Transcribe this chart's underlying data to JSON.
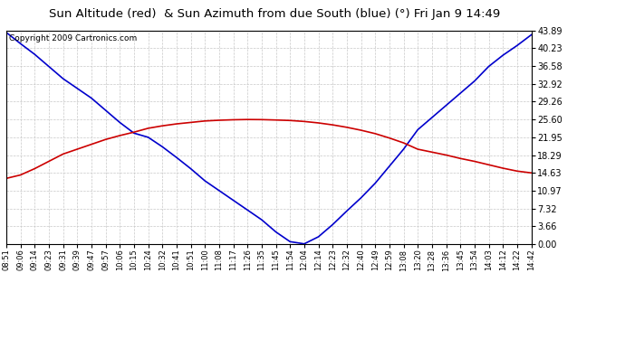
{
  "title": "Sun Altitude (red)  & Sun Azimuth from due South (blue) (°) Fri Jan 9 14:49",
  "copyright": "Copyright 2009 Cartronics.com",
  "yticks": [
    0.0,
    3.66,
    7.32,
    10.97,
    14.63,
    18.29,
    21.95,
    25.6,
    29.26,
    32.92,
    36.58,
    40.23,
    43.89
  ],
  "ymin": 0.0,
  "ymax": 43.89,
  "x_labels": [
    "08:51",
    "09:06",
    "09:14",
    "09:23",
    "09:31",
    "09:39",
    "09:47",
    "09:57",
    "10:06",
    "10:15",
    "10:24",
    "10:32",
    "10:41",
    "10:51",
    "11:00",
    "11:08",
    "11:17",
    "11:26",
    "11:35",
    "11:45",
    "11:54",
    "12:04",
    "12:14",
    "12:23",
    "12:32",
    "12:40",
    "12:49",
    "12:59",
    "13:08",
    "13:20",
    "13:28",
    "13:36",
    "13:45",
    "13:54",
    "14:03",
    "14:12",
    "14:22",
    "14:42"
  ],
  "red_values": [
    13.5,
    14.2,
    15.5,
    17.0,
    18.5,
    19.5,
    20.5,
    21.5,
    22.3,
    23.0,
    23.8,
    24.3,
    24.7,
    25.0,
    25.3,
    25.45,
    25.55,
    25.6,
    25.58,
    25.5,
    25.4,
    25.2,
    24.9,
    24.5,
    24.0,
    23.4,
    22.7,
    21.8,
    20.8,
    19.5,
    18.9,
    18.3,
    17.6,
    17.0,
    16.3,
    15.6,
    15.0,
    14.63
  ],
  "blue_values": [
    43.5,
    41.2,
    39.0,
    36.5,
    34.0,
    32.0,
    30.0,
    27.5,
    25.0,
    22.8,
    21.95,
    20.0,
    17.8,
    15.5,
    13.0,
    11.0,
    9.0,
    7.0,
    5.0,
    2.5,
    0.5,
    0.05,
    1.5,
    4.0,
    6.8,
    9.5,
    12.5,
    16.0,
    19.5,
    23.5,
    26.0,
    28.5,
    31.0,
    33.5,
    36.5,
    38.8,
    40.8,
    43.0
  ],
  "line_color_red": "#cc0000",
  "line_color_blue": "#0000cc",
  "bg_color": "#ffffff",
  "plot_bg_color": "#ffffff",
  "grid_color": "#c8c8c8",
  "title_fontsize": 9.5,
  "copyright_fontsize": 6.5,
  "tick_fontsize": 6.0,
  "ytick_fontsize": 7.0,
  "fig_width": 6.9,
  "fig_height": 3.75,
  "dpi": 100
}
